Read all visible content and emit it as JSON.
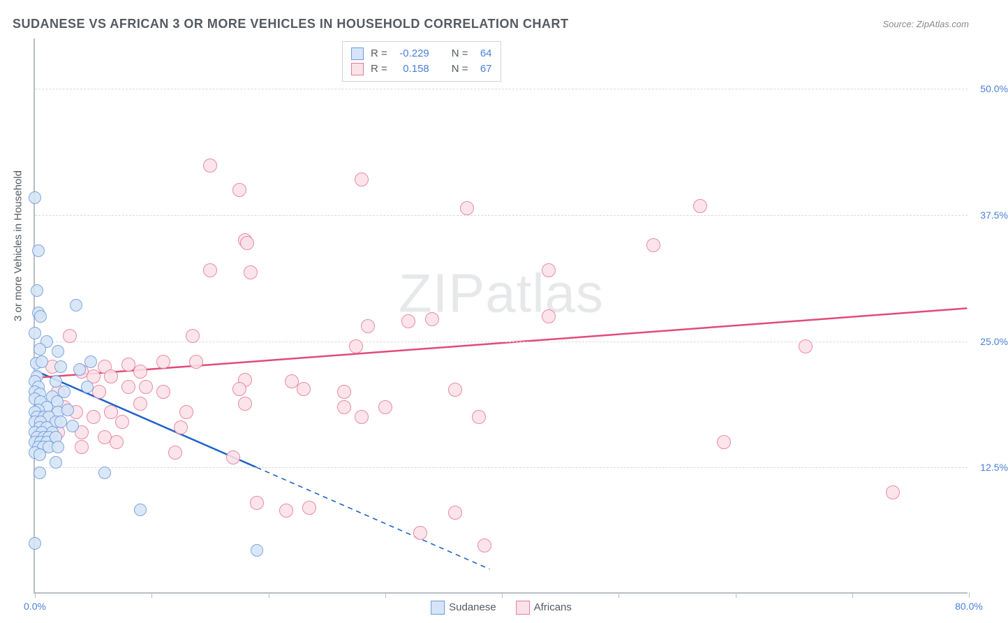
{
  "header": {
    "title": "SUDANESE VS AFRICAN 3 OR MORE VEHICLES IN HOUSEHOLD CORRELATION CHART",
    "source_prefix": "Source: ",
    "source_name": "ZipAtlas.com"
  },
  "ylabel": "3 or more Vehicles in Household",
  "watermark": {
    "bold": "ZIP",
    "rest": "atlas"
  },
  "axes": {
    "x": {
      "min": 0,
      "max": 80,
      "ticks": [
        0,
        10,
        20,
        30,
        40,
        50,
        60,
        70,
        80
      ],
      "labels": {
        "0": "0.0%",
        "80": "80.0%"
      }
    },
    "y": {
      "min": 0,
      "max": 55,
      "ticks": [
        12.5,
        25.0,
        37.5,
        50.0
      ],
      "labels": [
        "12.5%",
        "25.0%",
        "37.5%",
        "50.0%"
      ]
    }
  },
  "series": [
    {
      "id": "sudanese",
      "label": "Sudanese",
      "marker_fill": "#d6e4f7",
      "marker_stroke": "#6b9bdc",
      "marker_size": 18,
      "line_color": "#1f62c9",
      "line_width": 2.5,
      "stats": {
        "R": "-0.229",
        "N": "64"
      },
      "trend": {
        "solid": {
          "x1": 0,
          "y1": 22.0,
          "x2": 19,
          "y2": 12.4
        },
        "dashed": {
          "x1": 19,
          "y1": 12.4,
          "x2": 39,
          "y2": 2.3
        }
      },
      "points": [
        [
          0.0,
          39.2
        ],
        [
          0.3,
          34.0
        ],
        [
          0.2,
          30.0
        ],
        [
          0.3,
          27.8
        ],
        [
          3.5,
          28.6
        ],
        [
          0.5,
          27.5
        ],
        [
          0.0,
          25.8
        ],
        [
          1.0,
          25.0
        ],
        [
          0.4,
          24.2
        ],
        [
          0.1,
          22.8
        ],
        [
          2.0,
          24.0
        ],
        [
          0.6,
          23.0
        ],
        [
          4.8,
          23.0
        ],
        [
          0.2,
          21.5
        ],
        [
          2.2,
          22.5
        ],
        [
          0.0,
          21.0
        ],
        [
          1.8,
          21.0
        ],
        [
          0.3,
          20.5
        ],
        [
          0.0,
          20.0
        ],
        [
          3.8,
          22.2
        ],
        [
          0.4,
          19.8
        ],
        [
          1.5,
          19.5
        ],
        [
          0.0,
          19.3
        ],
        [
          0.5,
          19.0
        ],
        [
          1.9,
          19.0
        ],
        [
          2.5,
          20.0
        ],
        [
          1.0,
          18.5
        ],
        [
          0.3,
          18.2
        ],
        [
          0.0,
          18.0
        ],
        [
          4.5,
          20.5
        ],
        [
          2.0,
          18.0
        ],
        [
          0.2,
          17.5
        ],
        [
          0.8,
          17.5
        ],
        [
          1.2,
          17.5
        ],
        [
          0.0,
          17.0
        ],
        [
          0.5,
          17.0
        ],
        [
          1.8,
          17.0
        ],
        [
          2.8,
          18.2
        ],
        [
          0.4,
          16.5
        ],
        [
          1.0,
          16.5
        ],
        [
          0.0,
          16.0
        ],
        [
          0.6,
          16.0
        ],
        [
          1.5,
          16.0
        ],
        [
          2.2,
          17.0
        ],
        [
          0.2,
          15.5
        ],
        [
          0.8,
          15.5
        ],
        [
          1.2,
          15.5
        ],
        [
          0.0,
          15.0
        ],
        [
          0.5,
          15.0
        ],
        [
          1.0,
          15.0
        ],
        [
          1.8,
          15.5
        ],
        [
          3.2,
          16.6
        ],
        [
          0.3,
          14.5
        ],
        [
          0.7,
          14.5
        ],
        [
          1.2,
          14.5
        ],
        [
          0.0,
          14.0
        ],
        [
          2.0,
          14.5
        ],
        [
          0.4,
          13.8
        ],
        [
          1.8,
          13.0
        ],
        [
          0.0,
          5.0
        ],
        [
          0.4,
          12.0
        ],
        [
          9.0,
          8.3
        ],
        [
          6.0,
          12.0
        ],
        [
          19.0,
          4.3
        ]
      ]
    },
    {
      "id": "africans",
      "label": "Africans",
      "marker_fill": "#fbe2e8",
      "marker_stroke": "#e67a99",
      "marker_size": 20,
      "line_color": "#e14b78",
      "line_width": 2.5,
      "stats": {
        "R": "0.158",
        "N": "67"
      },
      "trend": {
        "solid": {
          "x1": 0,
          "y1": 21.3,
          "x2": 80,
          "y2": 28.2
        }
      },
      "points": [
        [
          15.0,
          42.4
        ],
        [
          28.0,
          41.0
        ],
        [
          17.5,
          40.0
        ],
        [
          37.0,
          38.2
        ],
        [
          18.0,
          35.0
        ],
        [
          18.2,
          34.7
        ],
        [
          57.0,
          38.4
        ],
        [
          53.0,
          34.5
        ],
        [
          15.0,
          32.0
        ],
        [
          18.5,
          31.8
        ],
        [
          44.0,
          32.0
        ],
        [
          32.0,
          27.0
        ],
        [
          34.0,
          27.2
        ],
        [
          66.0,
          24.5
        ],
        [
          44.0,
          27.5
        ],
        [
          4.0,
          22.0
        ],
        [
          6.0,
          22.5
        ],
        [
          8.0,
          22.7
        ],
        [
          9.0,
          22.0
        ],
        [
          11.0,
          23.0
        ],
        [
          13.5,
          25.5
        ],
        [
          13.8,
          23.0
        ],
        [
          27.5,
          24.5
        ],
        [
          28.5,
          26.5
        ],
        [
          5.0,
          21.5
        ],
        [
          6.5,
          21.5
        ],
        [
          8.0,
          20.5
        ],
        [
          9.0,
          18.8
        ],
        [
          18.0,
          21.2
        ],
        [
          17.5,
          20.3
        ],
        [
          22.0,
          21.0
        ],
        [
          23.0,
          20.3
        ],
        [
          36.0,
          20.2
        ],
        [
          3.5,
          18.0
        ],
        [
          5.0,
          17.5
        ],
        [
          6.5,
          18.0
        ],
        [
          7.5,
          17.0
        ],
        [
          13.0,
          18.0
        ],
        [
          18.0,
          18.8
        ],
        [
          26.5,
          18.5
        ],
        [
          28.0,
          17.5
        ],
        [
          30.0,
          18.5
        ],
        [
          38.0,
          17.5
        ],
        [
          4.0,
          16.0
        ],
        [
          6.0,
          15.5
        ],
        [
          12.5,
          16.5
        ],
        [
          17.0,
          13.5
        ],
        [
          33.0,
          6.0
        ],
        [
          36.0,
          8.0
        ],
        [
          38.5,
          4.8
        ],
        [
          19.0,
          9.0
        ],
        [
          21.5,
          8.2
        ],
        [
          23.5,
          8.5
        ],
        [
          26.5,
          20.0
        ],
        [
          5.5,
          20.0
        ],
        [
          3.0,
          25.5
        ],
        [
          1.5,
          22.5
        ],
        [
          2.0,
          20.0
        ],
        [
          2.5,
          18.5
        ],
        [
          2.0,
          16.0
        ],
        [
          4.0,
          14.5
        ],
        [
          7.0,
          15.0
        ],
        [
          9.5,
          20.5
        ],
        [
          11.0,
          20.0
        ],
        [
          12.0,
          14.0
        ],
        [
          73.5,
          10.0
        ],
        [
          59.0,
          15.0
        ]
      ]
    }
  ],
  "stat_box": {
    "r_label": "R =",
    "n_label": "N ="
  },
  "colors": {
    "axis": "#b9bec5",
    "grid": "#d7dadf",
    "text": "#555a60",
    "tick_text": "#4a7fd8"
  }
}
